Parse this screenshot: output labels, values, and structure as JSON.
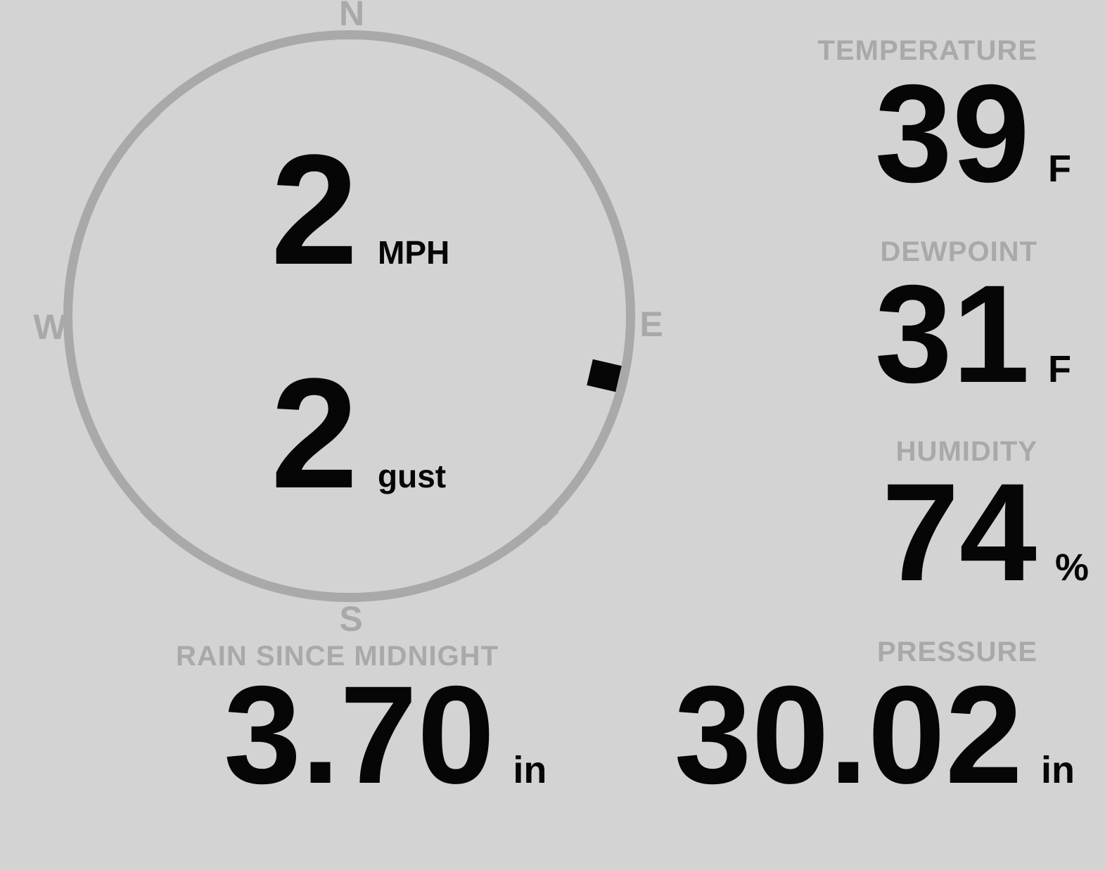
{
  "colors": {
    "background": "#d3d3d3",
    "muted": "#a9a9a9",
    "ink": "#060606"
  },
  "wind": {
    "compass": {
      "north": "N",
      "east": "E",
      "south": "S",
      "west": "W",
      "direction_degrees": 103
    },
    "speed": {
      "value": "2",
      "unit": "MPH"
    },
    "gust": {
      "value": "2",
      "unit": "gust"
    }
  },
  "metrics": {
    "temperature": {
      "label": "TEMPERATURE",
      "value": "39",
      "unit": "F"
    },
    "dewpoint": {
      "label": "DEWPOINT",
      "value": "31",
      "unit": "F"
    },
    "humidity": {
      "label": "HUMIDITY",
      "value": "74",
      "unit": "%"
    },
    "rain": {
      "label": "RAIN SINCE MIDNIGHT",
      "value": "3.70",
      "unit": "in"
    },
    "pressure": {
      "label": "PRESSURE",
      "value": "30.02",
      "unit": "in"
    }
  }
}
